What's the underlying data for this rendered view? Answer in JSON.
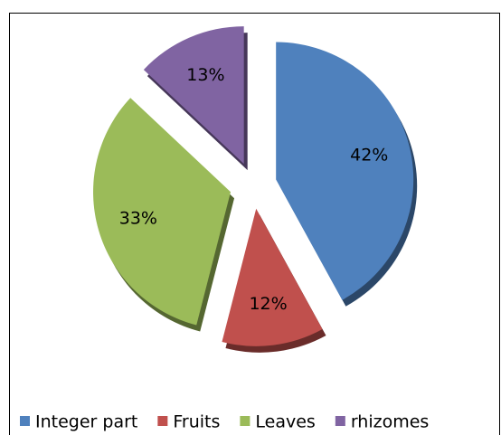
{
  "chart_data": {
    "type": "pie",
    "categories": [
      "Integer part",
      "Fruits",
      "Leaves",
      "rhizomes"
    ],
    "values": [
      42,
      12,
      33,
      13
    ],
    "value_labels": [
      "42%",
      "12%",
      "33%",
      "13%"
    ],
    "colors": [
      "#4f81bd",
      "#c0504d",
      "#9bbb59",
      "#8064a2"
    ]
  }
}
